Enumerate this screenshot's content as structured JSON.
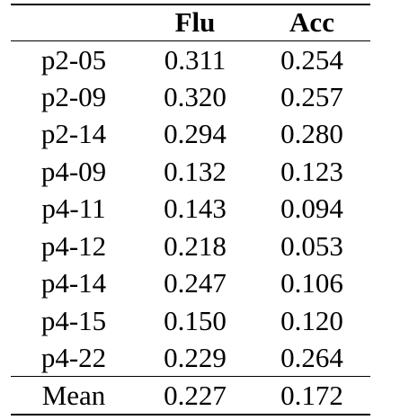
{
  "table": {
    "headers": [
      "",
      "Flu",
      "Acc"
    ],
    "rows": [
      {
        "label": "p2-05",
        "flu": "0.311",
        "acc": "0.254"
      },
      {
        "label": "p2-09",
        "flu": "0.320",
        "acc": "0.257"
      },
      {
        "label": "p2-14",
        "flu": "0.294",
        "acc": "0.280"
      },
      {
        "label": "p4-09",
        "flu": "0.132",
        "acc": "0.123"
      },
      {
        "label": "p4-11",
        "flu": "0.143",
        "acc": "0.094"
      },
      {
        "label": "p4-12",
        "flu": "0.218",
        "acc": "0.053"
      },
      {
        "label": "p4-14",
        "flu": "0.247",
        "acc": "0.106"
      },
      {
        "label": "p4-15",
        "flu": "0.150",
        "acc": "0.120"
      },
      {
        "label": "p4-22",
        "flu": "0.229",
        "acc": "0.264"
      }
    ],
    "footer": {
      "label": "Mean",
      "flu": "0.227",
      "acc": "0.172"
    }
  }
}
